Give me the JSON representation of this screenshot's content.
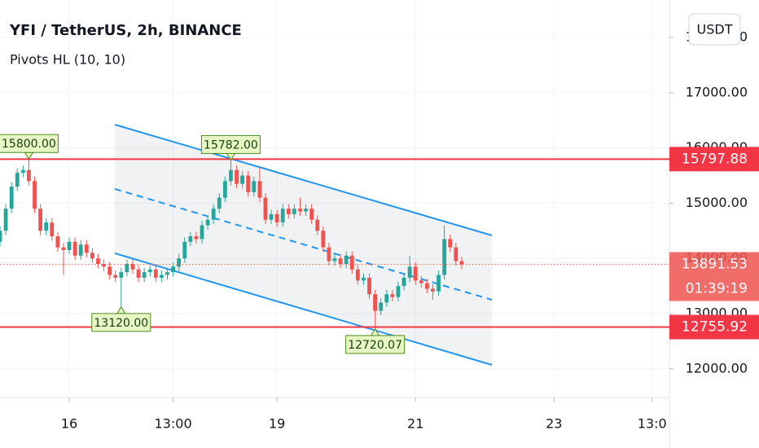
{
  "chart_data": {
    "type": "candlestick",
    "title": "YFI / TetherUS, 2h, BINANCE",
    "subtitle": "Pivots HL (10, 10)",
    "currency": "USDT",
    "up_color": "#26a69a",
    "down_color": "#ef5350",
    "level_color": "#f23645",
    "grid": true,
    "xlim": [
      0,
      116
    ],
    "xticks": [
      {
        "value": 12,
        "label": "16"
      },
      {
        "value": 30,
        "label": "13:00"
      },
      {
        "value": 48,
        "label": "19"
      },
      {
        "value": 72,
        "label": "21"
      },
      {
        "value": 96,
        "label": "23"
      },
      {
        "value": 113,
        "label": "13:0"
      }
    ],
    "ylim": [
      11480,
      18680
    ],
    "yticks": [
      {
        "value": 12000,
        "label": "12000.00"
      },
      {
        "value": 13000,
        "label": "13000.00"
      },
      {
        "value": 14000,
        "label": "14000.00"
      },
      {
        "value": 15000,
        "label": "15000.00"
      },
      {
        "value": 16000,
        "label": "16000.00"
      },
      {
        "value": 17000,
        "label": "17000.00"
      },
      {
        "value": 18000,
        "label": "18000.00"
      }
    ],
    "open": [
      14300,
      14500,
      14900,
      15300,
      15550,
      15600,
      15400,
      14900,
      14500,
      14650,
      14400,
      14200,
      14150,
      14300,
      14050,
      14250,
      14100,
      14000,
      13900,
      13850,
      13700,
      13650,
      13750,
      13900,
      13800,
      13650,
      13750,
      13800,
      13650,
      13700,
      13750,
      13850,
      14000,
      14300,
      14400,
      14350,
      14600,
      14700,
      14900,
      15100,
      15400,
      15600,
      15350,
      15500,
      15200,
      15400,
      15100,
      14700,
      14800,
      14650,
      14900,
      14800,
      14900,
      14850,
      14900,
      14700,
      14500,
      14200,
      13950,
      14000,
      13900,
      14050,
      13800,
      13600,
      13650,
      13350,
      13050,
      13200,
      13350,
      13300,
      13500,
      13650,
      13850,
      13600,
      13550,
      13450,
      13400,
      13700,
      14350,
      14200,
      13950
    ],
    "high": [
      14580,
      14980,
      15380,
      15630,
      15680,
      15800,
      15480,
      14980,
      14730,
      14730,
      14480,
      14280,
      14380,
      14380,
      14330,
      14330,
      14180,
      14080,
      13980,
      13930,
      13780,
      13830,
      13980,
      13980,
      13880,
      13830,
      13880,
      13880,
      13780,
      13830,
      13930,
      14080,
      14380,
      14480,
      14480,
      14680,
      14780,
      14980,
      15180,
      15480,
      15782,
      15680,
      15580,
      15580,
      15480,
      15650,
      15180,
      14880,
      14880,
      14980,
      14980,
      14980,
      15100,
      14980,
      14980,
      14780,
      14580,
      14280,
      14080,
      14080,
      14130,
      14130,
      13880,
      13730,
      13730,
      13430,
      13280,
      13430,
      13430,
      13580,
      13730,
      14050,
      13930,
      13680,
      13630,
      13530,
      13780,
      14600,
      14430,
      14280,
      14030
    ],
    "low": [
      14220,
      14420,
      14820,
      15220,
      15470,
      15320,
      14820,
      14420,
      14420,
      14320,
      14120,
      13700,
      14070,
      13970,
      13970,
      14020,
      13920,
      13820,
      13770,
      13620,
      13570,
      13120,
      13670,
      13720,
      13570,
      13570,
      13670,
      13570,
      13570,
      13620,
      13670,
      13770,
      13920,
      14220,
      14270,
      14270,
      14520,
      14620,
      14820,
      15020,
      15320,
      15270,
      15270,
      15120,
      15120,
      15020,
      14620,
      14620,
      14570,
      14570,
      14720,
      14720,
      14770,
      14770,
      14620,
      14420,
      14120,
      13870,
      13870,
      13820,
      13820,
      13720,
      13520,
      13520,
      13270,
      12720.07,
      12970,
      13120,
      13220,
      13220,
      13420,
      13570,
      13520,
      13470,
      13370,
      13250,
      13320,
      13620,
      14120,
      13870,
      13810
    ],
    "close": [
      14500,
      14900,
      15300,
      15550,
      15600,
      15400,
      14900,
      14500,
      14650,
      14400,
      14200,
      14150,
      14300,
      14050,
      14250,
      14100,
      14000,
      13900,
      13850,
      13700,
      13650,
      13750,
      13900,
      13800,
      13650,
      13750,
      13800,
      13650,
      13700,
      13750,
      13850,
      14000,
      14300,
      14400,
      14350,
      14600,
      14700,
      14900,
      15100,
      15400,
      15600,
      15350,
      15500,
      15200,
      15400,
      15100,
      14700,
      14800,
      14650,
      14900,
      14800,
      14900,
      14850,
      14900,
      14700,
      14500,
      14200,
      13950,
      14000,
      13900,
      14050,
      13800,
      13600,
      13650,
      13350,
      13050,
      13200,
      13350,
      13300,
      13500,
      13650,
      13850,
      13600,
      13550,
      13450,
      13400,
      13700,
      14350,
      14200,
      13950,
      13891.53
    ],
    "pivots": [
      {
        "value": 15800,
        "label": "15800.00"
      },
      {
        "value": 15782,
        "label": "15782.00"
      },
      {
        "value": 13120,
        "label": "13120.00"
      },
      {
        "value": 12720.07,
        "label": "12720.07"
      }
    ],
    "levels": [
      15797.88,
      12755.92
    ],
    "last_price": 13891.53,
    "countdown": "01:39:19"
  }
}
